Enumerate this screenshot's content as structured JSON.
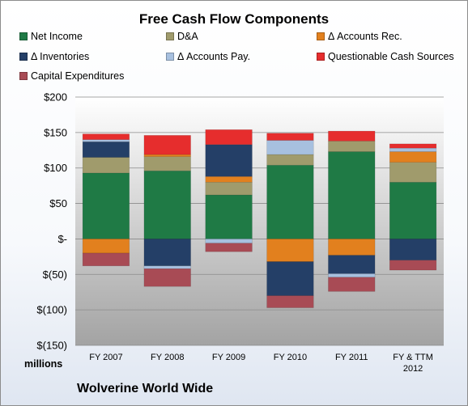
{
  "chart_data": {
    "type": "bar",
    "stacked": true,
    "title": "Free Cash Flow Components",
    "units_label": "millions",
    "footer": "Wolverine World Wide",
    "categories": [
      "FY 2007",
      "FY 2008",
      "FY 2009",
      "FY 2010",
      "FY 2011",
      "FY & TTM 2012"
    ],
    "ylim": [
      -150,
      200
    ],
    "yticks": [
      -150,
      -100,
      -50,
      0,
      50,
      100,
      150,
      200
    ],
    "ytick_labels": [
      "$(150)",
      "$(100)",
      "$(50)",
      "$-",
      "$50",
      "$100",
      "$150",
      "$200"
    ],
    "grid": true,
    "legend_position": "top",
    "series": [
      {
        "name": "Net Income",
        "color": "#1f7a45",
        "values": [
          93,
          96,
          62,
          104,
          123,
          80
        ]
      },
      {
        "name": "D&A",
        "color": "#a09b6c",
        "values": [
          22,
          20,
          18,
          15,
          15,
          28
        ]
      },
      {
        "name": "Δ Accounts Rec.",
        "color": "#e2801e",
        "values": [
          -20,
          3,
          8,
          -32,
          -23,
          15
        ]
      },
      {
        "name": "Δ Inventories",
        "color": "#243f67",
        "values": [
          22,
          -38,
          45,
          -48,
          -26,
          -30
        ]
      },
      {
        "name": "Δ Accounts Pay.",
        "color": "#a7c0df",
        "values": [
          3,
          -4,
          -6,
          20,
          -5,
          5
        ]
      },
      {
        "name": "Questionable Cash Sources",
        "color": "#e62d2d",
        "values": [
          8,
          27,
          21,
          10,
          14,
          6
        ]
      },
      {
        "name": "Capital Expenditures",
        "color": "#a84b55",
        "values": [
          -18,
          -25,
          -12,
          -17,
          -20,
          -14
        ]
      }
    ]
  }
}
